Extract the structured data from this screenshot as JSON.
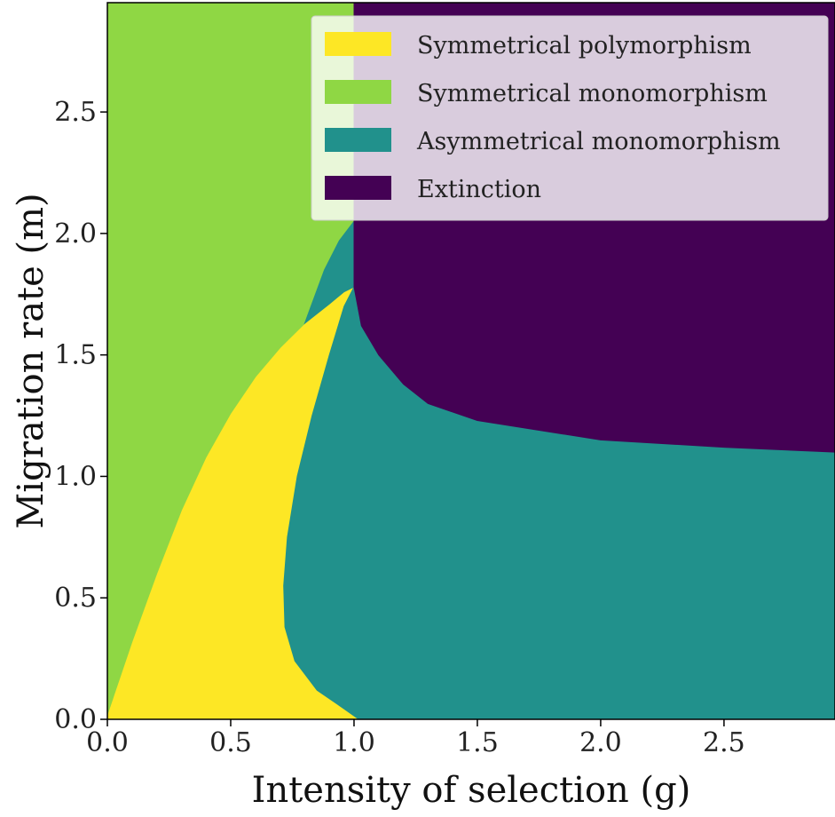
{
  "chart_data": {
    "type": "heatmap",
    "title": "",
    "xlabel": "Intensity of selection (g)",
    "ylabel": "Migration rate (m)",
    "xlim": [
      0,
      2.95
    ],
    "ylim": [
      0,
      2.95
    ],
    "x_ticks": [
      "0.0",
      "0.5",
      "1.0",
      "1.5",
      "2.0",
      "2.5"
    ],
    "y_ticks": [
      "0.0",
      "0.5",
      "1.0",
      "1.5",
      "2.0",
      "2.5"
    ],
    "legend_position": "top-right",
    "grid": false,
    "regions": [
      {
        "name": "Symmetrical polymorphism",
        "color": "#fde725",
        "polygon": [
          [
            0,
            0
          ],
          [
            1.02,
            0
          ],
          [
            0.95,
            0.05
          ],
          [
            0.85,
            0.12
          ],
          [
            0.76,
            0.24
          ],
          [
            0.72,
            0.38
          ],
          [
            0.715,
            0.55
          ],
          [
            0.73,
            0.75
          ],
          [
            0.77,
            1.0
          ],
          [
            0.83,
            1.25
          ],
          [
            0.9,
            1.5
          ],
          [
            0.96,
            1.7
          ],
          [
            1.0,
            1.78
          ],
          [
            0.96,
            1.76
          ],
          [
            0.9,
            1.71
          ],
          [
            0.8,
            1.63
          ],
          [
            0.7,
            1.53
          ],
          [
            0.6,
            1.41
          ],
          [
            0.5,
            1.26
          ],
          [
            0.4,
            1.08
          ],
          [
            0.3,
            0.86
          ],
          [
            0.2,
            0.6
          ],
          [
            0.1,
            0.32
          ],
          [
            0.03,
            0.11
          ],
          [
            0,
            0.02
          ]
        ]
      },
      {
        "name": "Symmetrical monomorphism",
        "color": "#8fd744",
        "polygon": [
          [
            0,
            0.02
          ],
          [
            0.03,
            0.11
          ],
          [
            0.1,
            0.32
          ],
          [
            0.2,
            0.6
          ],
          [
            0.3,
            0.86
          ],
          [
            0.4,
            1.08
          ],
          [
            0.5,
            1.26
          ],
          [
            0.6,
            1.41
          ],
          [
            0.7,
            1.53
          ],
          [
            0.8,
            1.63
          ],
          [
            0.88,
            1.85
          ],
          [
            0.94,
            1.97
          ],
          [
            1.0,
            2.05
          ],
          [
            1.0,
            2.95
          ],
          [
            0,
            2.95
          ]
        ]
      },
      {
        "name": "Asymmetrical monomorphism",
        "color": "#21918c",
        "polygon": [
          [
            1.02,
            0
          ],
          [
            2.95,
            0
          ],
          [
            2.95,
            1.1
          ],
          [
            2.5,
            1.12
          ],
          [
            2.0,
            1.15
          ],
          [
            1.5,
            1.23
          ],
          [
            1.3,
            1.3
          ],
          [
            1.2,
            1.38
          ],
          [
            1.1,
            1.5
          ],
          [
            1.03,
            1.62
          ],
          [
            1.0,
            1.78
          ],
          [
            1.0,
            2.05
          ],
          [
            0.94,
            1.97
          ],
          [
            0.88,
            1.85
          ],
          [
            0.8,
            1.63
          ],
          [
            0.9,
            1.71
          ],
          [
            0.96,
            1.76
          ],
          [
            1.0,
            1.78
          ],
          [
            0.96,
            1.7
          ],
          [
            0.9,
            1.5
          ],
          [
            0.83,
            1.25
          ],
          [
            0.77,
            1.0
          ],
          [
            0.73,
            0.75
          ],
          [
            0.715,
            0.55
          ],
          [
            0.72,
            0.38
          ],
          [
            0.76,
            0.24
          ],
          [
            0.85,
            0.12
          ],
          [
            0.95,
            0.05
          ]
        ]
      },
      {
        "name": "Extinction",
        "color": "#440154",
        "polygon": [
          [
            1.0,
            2.95
          ],
          [
            2.95,
            2.95
          ],
          [
            2.95,
            1.1
          ],
          [
            2.5,
            1.12
          ],
          [
            2.0,
            1.15
          ],
          [
            1.5,
            1.23
          ],
          [
            1.3,
            1.3
          ],
          [
            1.2,
            1.38
          ],
          [
            1.1,
            1.5
          ],
          [
            1.03,
            1.62
          ],
          [
            1.0,
            1.78
          ],
          [
            1.0,
            2.05
          ]
        ]
      }
    ]
  },
  "legend": {
    "items": [
      {
        "label": "Symmetrical polymorphism",
        "color": "#fde725"
      },
      {
        "label": "Symmetrical monomorphism",
        "color": "#8fd744"
      },
      {
        "label": "Asymmetrical monomorphism",
        "color": "#21918c"
      },
      {
        "label": "Extinction",
        "color": "#440154"
      }
    ]
  }
}
